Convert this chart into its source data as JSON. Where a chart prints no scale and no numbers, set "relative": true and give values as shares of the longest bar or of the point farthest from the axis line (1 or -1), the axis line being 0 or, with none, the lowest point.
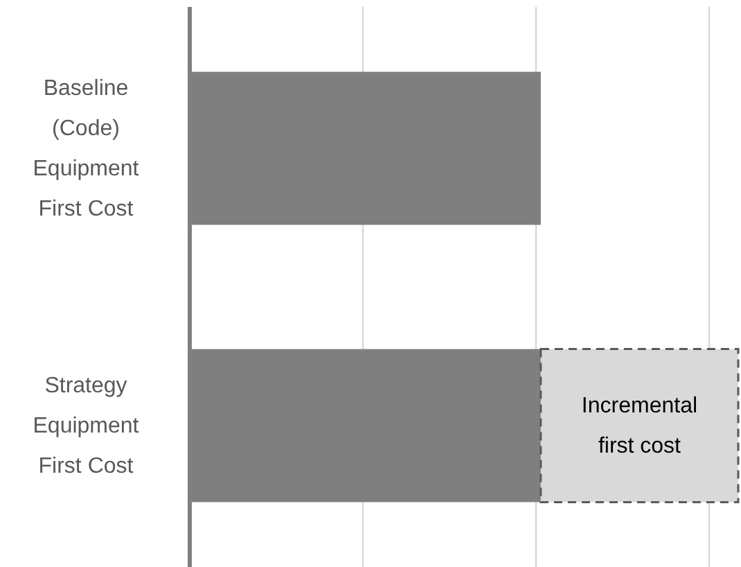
{
  "chart_data": {
    "type": "bar",
    "orientation": "horizontal",
    "stacked": true,
    "relative": true,
    "grid": "x",
    "categories": [
      "Baseline (Code) Equipment First Cost",
      "Strategy Equipment First Cost"
    ],
    "series": [
      {
        "color": "#7f7f7f",
        "values": [
          0.64,
          0.64
        ]
      },
      {
        "name": "Incremental first cost",
        "color": "#d9d9d9",
        "line_style": "dashed",
        "values": [
          null,
          0.36
        ]
      }
    ]
  }
}
